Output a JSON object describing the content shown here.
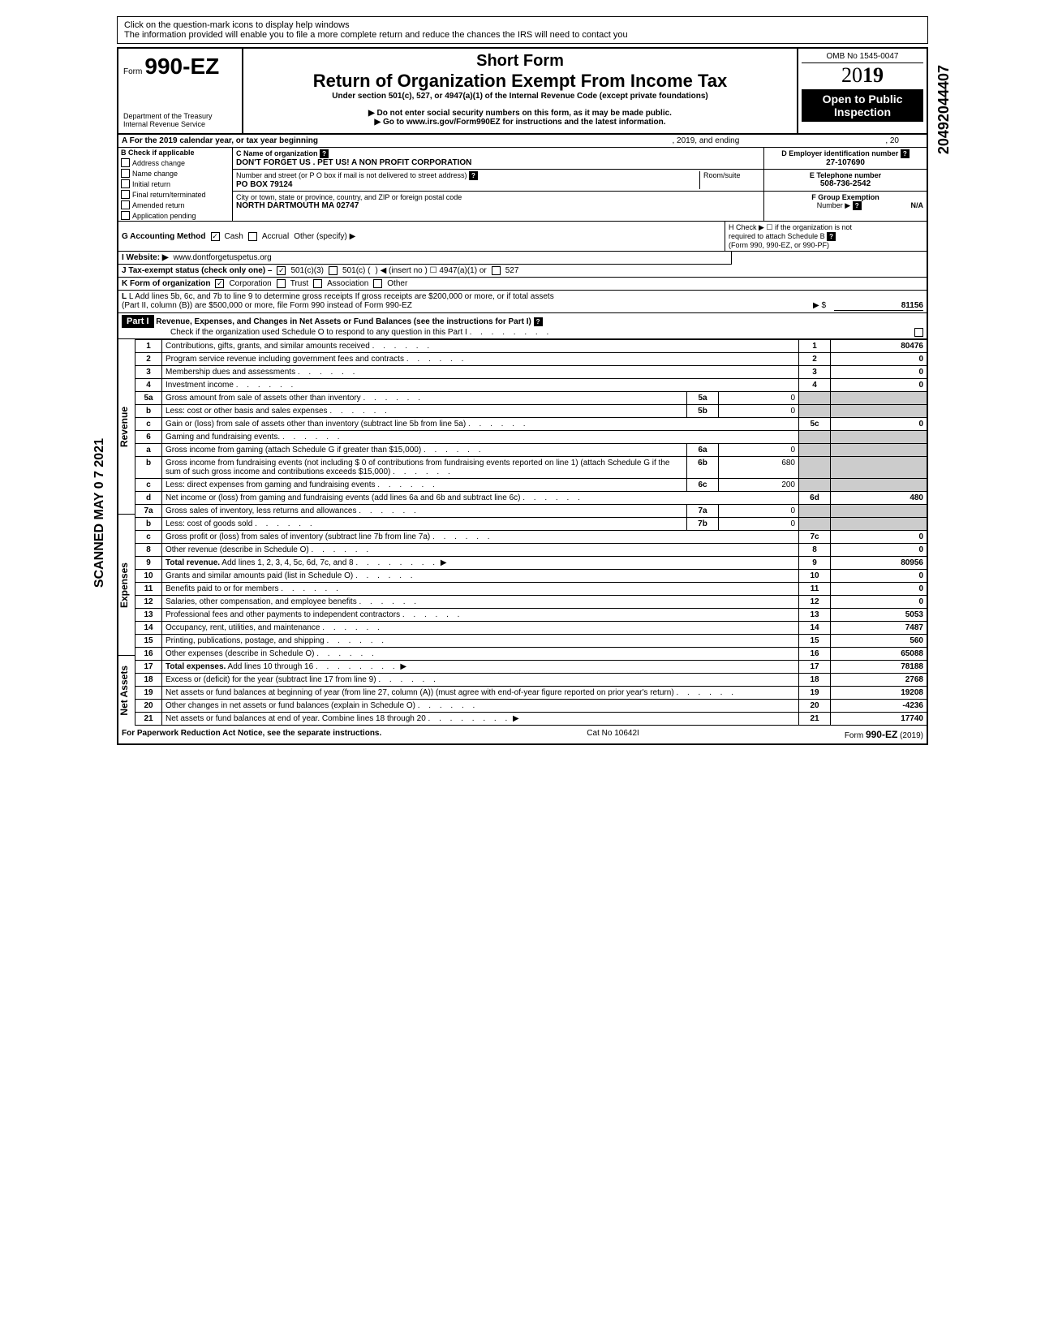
{
  "help_line1": "Click on the question-mark icons to display help windows",
  "help_line2": "The information provided will enable you to file a more complete return and reduce the chances the IRS will need to contact you",
  "form_prefix": "Form",
  "form_number": "990-EZ",
  "short_form": "Short Form",
  "return_title": "Return of Organization Exempt From Income Tax",
  "under_section": "Under section 501(c), 527, or 4947(a)(1) of the Internal Revenue Code (except private foundations)",
  "ssn_warning": "▶ Do not enter social security numbers on this form, as it may be made public.",
  "goto": "▶ Go to www.irs.gov/Form990EZ for instructions and the latest information.",
  "dept": "Department of the Treasury",
  "irs": "Internal Revenue Service",
  "omb": "OMB No 1545-0047",
  "year_20": "20",
  "year_19": "19",
  "open_public": "Open to Public",
  "inspection": "Inspection",
  "line_a": "A For the 2019 calendar year, or tax year beginning",
  "line_a_mid": ", 2019, and ending",
  "line_a_end": ", 20",
  "b_header": "B Check if applicable",
  "b_items": [
    "Address change",
    "Name change",
    "Initial return",
    "Final return/terminated",
    "Amended return",
    "Application pending"
  ],
  "c_name_label": "C Name of organization",
  "org_name": "DON'T FORGET US . PET US! A NON PROFIT CORPORATION",
  "c_addr_label": "Number and street (or P O  box if mail is not delivered to street address)",
  "room_suite": "Room/suite",
  "org_addr": "PO BOX 79124",
  "c_city_label": "City or town, state or province, country, and ZIP or foreign postal code",
  "org_city": "NORTH DARTMOUTH MA 02747",
  "d_label": "D Employer identification number",
  "ein": "27-107690",
  "e_label": "E Telephone number",
  "phone": "508-736-2542",
  "f_label": "F Group Exemption",
  "f_number": "Number ▶",
  "f_val": "N/A",
  "g_label": "G Accounting Method",
  "g_cash": "Cash",
  "g_accrual": "Accrual",
  "g_other": "Other (specify) ▶",
  "h_label": "H Check ▶ ☐ if the organization is not",
  "h_line2": "required to attach Schedule B",
  "h_line3": "(Form 990, 990-EZ, or 990-PF)",
  "i_label": "I  Website: ▶",
  "website": "www.dontforgetuspetus.org",
  "j_label": "J Tax-exempt status (check only one) –",
  "j_501c3": "501(c)(3)",
  "j_501c": "501(c) (",
  "j_insert": ") ◀ (insert no ) ☐ 4947(a)(1) or",
  "j_527": "527",
  "k_label": "K Form of organization",
  "k_corp": "Corporation",
  "k_trust": "Trust",
  "k_assoc": "Association",
  "k_other": "Other",
  "l_line1": "L Add lines 5b, 6c, and 7b to line 9 to determine gross receipts  If gross receipts are $200,000 or more, or if total assets",
  "l_line2": "(Part II, column (B)) are $500,000 or more, file Form 990 instead of Form 990-EZ",
  "l_arrow": "▶   $",
  "l_val": "81156",
  "part1": "Part I",
  "part1_title": "Revenue, Expenses, and Changes in Net Assets or Fund Balances (see the instructions for Part I)",
  "part1_check": "Check if the organization used Schedule O to respond to any question in this Part I",
  "vert_revenue": "Revenue",
  "vert_expenses": "Expenses",
  "vert_netassets": "Net Assets",
  "side_scanned": "SCANNED MAY 0 7 2021",
  "side_number": "20492044407",
  "lines": {
    "1": {
      "num": "1",
      "desc": "Contributions, gifts, grants, and similar amounts received",
      "rn": "1",
      "rv": "80476"
    },
    "2": {
      "num": "2",
      "desc": "Program service revenue including government fees and contracts",
      "rn": "2",
      "rv": "0"
    },
    "3": {
      "num": "3",
      "desc": "Membership dues and assessments",
      "rn": "3",
      "rv": "0"
    },
    "4": {
      "num": "4",
      "desc": "Investment income",
      "rn": "4",
      "rv": "0"
    },
    "5a": {
      "num": "5a",
      "desc": "Gross amount from sale of assets other than inventory",
      "mn": "5a",
      "mv": "0"
    },
    "5b": {
      "num": "b",
      "desc": "Less: cost or other basis and sales expenses",
      "mn": "5b",
      "mv": "0"
    },
    "5c": {
      "num": "c",
      "desc": "Gain or (loss) from sale of assets other than inventory (subtract line 5b from line 5a)",
      "rn": "5c",
      "rv": "0"
    },
    "6": {
      "num": "6",
      "desc": "Gaming and fundraising events."
    },
    "6a": {
      "num": "a",
      "desc": "Gross income from gaming (attach Schedule G if greater than $15,000)",
      "mn": "6a",
      "mv": "0"
    },
    "6b": {
      "num": "b",
      "desc": "Gross income from fundraising events (not including  $                    0 of contributions from fundraising events reported on line 1) (attach Schedule G if the sum of such gross income and contributions exceeds $15,000)",
      "mn": "6b",
      "mv": "680"
    },
    "6c": {
      "num": "c",
      "desc": "Less: direct expenses from gaming and fundraising events",
      "mn": "6c",
      "mv": "200"
    },
    "6d": {
      "num": "d",
      "desc": "Net income or (loss) from gaming and fundraising events (add lines 6a and 6b and subtract line 6c)",
      "rn": "6d",
      "rv": "480"
    },
    "7a": {
      "num": "7a",
      "desc": "Gross sales of inventory, less returns and allowances",
      "mn": "7a",
      "mv": "0"
    },
    "7b": {
      "num": "b",
      "desc": "Less: cost of goods sold",
      "mn": "7b",
      "mv": "0"
    },
    "7c": {
      "num": "c",
      "desc": "Gross profit or (loss) from sales of inventory (subtract line 7b from line 7a)",
      "rn": "7c",
      "rv": "0"
    },
    "8": {
      "num": "8",
      "desc": "Other revenue (describe in Schedule O)",
      "rn": "8",
      "rv": "0"
    },
    "9": {
      "num": "9",
      "desc": "Total revenue. Add lines 1, 2, 3, 4, 5c, 6d, 7c, and 8",
      "rn": "9",
      "rv": "80956",
      "bold": true,
      "arrow": true
    },
    "10": {
      "num": "10",
      "desc": "Grants and similar amounts paid (list in Schedule O)",
      "rn": "10",
      "rv": "0"
    },
    "11": {
      "num": "11",
      "desc": "Benefits paid to or for members",
      "rn": "11",
      "rv": "0"
    },
    "12": {
      "num": "12",
      "desc": "Salaries, other compensation, and employee benefits",
      "rn": "12",
      "rv": "0"
    },
    "13": {
      "num": "13",
      "desc": "Professional fees and other payments to independent contractors",
      "rn": "13",
      "rv": "5053"
    },
    "14": {
      "num": "14",
      "desc": "Occupancy, rent, utilities, and maintenance",
      "rn": "14",
      "rv": "7487"
    },
    "15": {
      "num": "15",
      "desc": "Printing, publications, postage, and shipping",
      "rn": "15",
      "rv": "560"
    },
    "16": {
      "num": "16",
      "desc": "Other expenses (describe in Schedule O)",
      "rn": "16",
      "rv": "65088"
    },
    "17": {
      "num": "17",
      "desc": "Total expenses. Add lines 10 through 16",
      "rn": "17",
      "rv": "78188",
      "bold": true,
      "arrow": true
    },
    "18": {
      "num": "18",
      "desc": "Excess or (deficit) for the year (subtract line 17 from line 9)",
      "rn": "18",
      "rv": "2768"
    },
    "19": {
      "num": "19",
      "desc": "Net assets or fund balances at beginning of year (from line 27, column (A)) (must agree with end-of-year figure reported on prior year's return)",
      "rn": "19",
      "rv": "19208"
    },
    "20": {
      "num": "20",
      "desc": "Other changes in net assets or fund balances (explain in Schedule O)",
      "rn": "20",
      "rv": "-4236"
    },
    "21": {
      "num": "21",
      "desc": "Net assets or fund balances at end of year. Combine lines 18 through 20",
      "rn": "21",
      "rv": "17740",
      "arrow": true
    }
  },
  "footer_left": "For Paperwork Reduction Act Notice, see the separate instructions.",
  "footer_mid": "Cat  No  10642I",
  "footer_right_form": "Form",
  "footer_right_num": "990-EZ",
  "footer_right_year": "(2019)",
  "colors": {
    "black": "#000000",
    "white": "#ffffff",
    "shade": "#cccccc"
  }
}
